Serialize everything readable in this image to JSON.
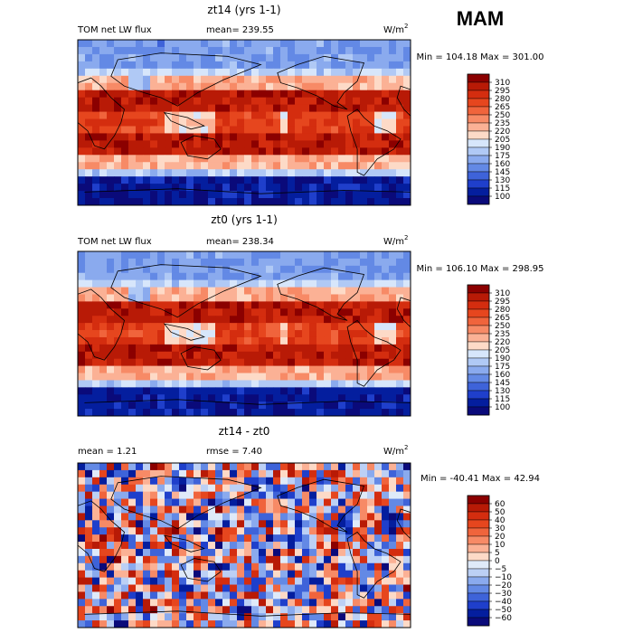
{
  "figure": {
    "season": "MAM",
    "units_base": "W/m",
    "units_exp": "2"
  },
  "chart_data": [
    {
      "type": "heatmap",
      "title": "zt14 (yrs 1-1)",
      "left_label": "TOM net LW flux",
      "mid_label": "mean=  239.55",
      "minmax_label": "Min = 104.18 Max = 301.00",
      "min": 104.18,
      "max": 301.0,
      "mean": 239.55,
      "levels": [
        "310",
        "295",
        "280",
        "265",
        "250",
        "235",
        "220",
        "205",
        "190",
        "175",
        "160",
        "145",
        "130",
        "115",
        "100"
      ],
      "colors": [
        "#8b0000",
        "#b81a06",
        "#d42d0f",
        "#e6461e",
        "#f0643c",
        "#f78a66",
        "#fbb195",
        "#fddac7",
        "#d7e6fb",
        "#b0c9f5",
        "#8aaaee",
        "#6389e5",
        "#3e63d9",
        "#1f3fcb",
        "#041e9e",
        "#0a0a7a"
      ]
    },
    {
      "type": "heatmap",
      "title": "zt0 (yrs 1-1)",
      "left_label": "TOM net LW flux",
      "mid_label": "mean=  238.34",
      "minmax_label": "Min = 106.10 Max = 298.95",
      "min": 106.1,
      "max": 298.95,
      "mean": 238.34,
      "levels": [
        "310",
        "295",
        "280",
        "265",
        "250",
        "235",
        "220",
        "205",
        "190",
        "175",
        "160",
        "145",
        "130",
        "115",
        "100"
      ],
      "colors": [
        "#8b0000",
        "#b81a06",
        "#d42d0f",
        "#e6461e",
        "#f0643c",
        "#f78a66",
        "#fbb195",
        "#fddac7",
        "#d7e6fb",
        "#b0c9f5",
        "#8aaaee",
        "#6389e5",
        "#3e63d9",
        "#1f3fcb",
        "#041e9e",
        "#0a0a7a"
      ]
    },
    {
      "type": "heatmap",
      "title": "zt14 - zt0",
      "left_label": "mean =    1.21",
      "mid_label": "rmse =    7.40",
      "minmax_label": "Min = -40.41 Max =  42.94",
      "min": -40.41,
      "max": 42.94,
      "mean": 1.21,
      "rmse": 7.4,
      "levels": [
        "60",
        "50",
        "40",
        "30",
        "20",
        "10",
        "5",
        "0",
        "−5",
        "−10",
        "−20",
        "−30",
        "−40",
        "−50",
        "−60"
      ],
      "colors": [
        "#8b0000",
        "#b81a06",
        "#d42d0f",
        "#e6461e",
        "#f0643c",
        "#f78a66",
        "#fbb195",
        "#fddac7",
        "#dfeaf9",
        "#bcd0f5",
        "#8aaaee",
        "#6389e5",
        "#3e63d9",
        "#1f3fcb",
        "#041e9e",
        "#0a0a7a"
      ]
    }
  ]
}
